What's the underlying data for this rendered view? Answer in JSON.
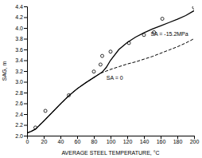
{
  "chart_data": {
    "type": "line",
    "xlabel": "AVERAGE STEEL TEMPERATURE, °C",
    "ylabel": "SAG, m",
    "xlim": [
      0,
      200
    ],
    "ylim": [
      2.0,
      4.4
    ],
    "xticks": [
      0,
      20,
      40,
      60,
      80,
      100,
      120,
      140,
      160,
      180,
      200
    ],
    "yticks": [
      {
        "value": 2.0,
        "label": "2.0"
      },
      2.2,
      2.4,
      2.6,
      2.8,
      {
        "value": 3.0,
        "label": "3.0"
      },
      3.2,
      3.4,
      3.6,
      3.8,
      {
        "value": 4.0,
        "label": "4.0"
      },
      4.2,
      4.4
    ],
    "grid": false,
    "series": [
      {
        "type": "line",
        "line_style": "solid",
        "color": "#000000",
        "x": [
          0,
          5,
          10,
          20,
          30,
          40,
          50,
          60,
          70,
          80,
          85,
          90,
          95,
          100,
          110,
          120,
          130,
          140,
          150,
          160,
          170,
          180,
          190,
          200
        ],
        "values": [
          2.05,
          2.08,
          2.12,
          2.27,
          2.43,
          2.59,
          2.74,
          2.87,
          2.98,
          3.08,
          3.13,
          3.18,
          3.27,
          3.4,
          3.6,
          3.73,
          3.83,
          3.91,
          3.98,
          4.04,
          4.1,
          4.16,
          4.23,
          4.32
        ]
      },
      {
        "type": "line",
        "line_style": "dashed",
        "color": "#000000",
        "x": [
          0,
          5,
          10,
          20,
          30,
          40,
          50,
          60,
          70,
          80,
          85,
          90,
          95,
          100,
          110,
          120,
          130,
          140,
          150,
          160,
          170,
          180,
          190,
          200
        ],
        "values": [
          2.05,
          2.08,
          2.12,
          2.27,
          2.43,
          2.59,
          2.74,
          2.87,
          2.98,
          3.08,
          3.13,
          3.17,
          3.2,
          3.23,
          3.28,
          3.33,
          3.37,
          3.42,
          3.47,
          3.53,
          3.59,
          3.65,
          3.72,
          3.8
        ]
      },
      {
        "type": "scatter",
        "marker": "open-circle",
        "color": "#000000",
        "x": [
          10,
          22,
          50,
          80,
          88,
          90,
          100,
          122,
          140,
          152,
          162,
          200
        ],
        "values": [
          2.15,
          2.46,
          2.75,
          3.19,
          3.32,
          3.48,
          3.56,
          3.72,
          3.87,
          3.92,
          4.17,
          4.38
        ]
      }
    ],
    "annotations": [
      {
        "text": "SA = 0",
        "x": 95,
        "y": 3.07
      },
      {
        "text": "SA = -15.2MPa",
        "x": 148,
        "y": 3.88
      }
    ]
  }
}
